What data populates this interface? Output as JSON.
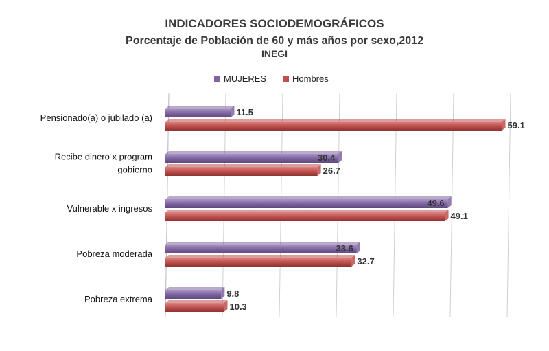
{
  "chart_data": {
    "type": "bar",
    "orientation": "horizontal",
    "title": "INDICADORES SOCIODEMOGRÁFICOS",
    "subtitle": "Porcentaje de Población de 60 y más años por sexo,2012",
    "source": "INEGI",
    "categories": [
      "Pensionado(a) o jubilado (a)",
      "Recibe dinero x program gobierno",
      "Vulnerable x ingresos",
      "Pobreza moderada",
      "Pobreza extrema"
    ],
    "category_lines": [
      [
        "Pensionado(a) o jubilado (a)"
      ],
      [
        "Recibe dinero x program",
        "gobierno"
      ],
      [
        "Vulnerable x ingresos"
      ],
      [
        "Pobreza moderada"
      ],
      [
        "Pobreza extrema"
      ]
    ],
    "series": [
      {
        "name": "MUJERES",
        "values": [
          11.5,
          30.4,
          49.6,
          33.6,
          9.8
        ],
        "color": "#8064a2"
      },
      {
        "name": "Hombres",
        "values": [
          59.1,
          26.7,
          49.1,
          32.7,
          10.3
        ],
        "color": "#c0504d"
      }
    ],
    "xlim": [
      0,
      60
    ],
    "grid": true,
    "legend": "top"
  }
}
